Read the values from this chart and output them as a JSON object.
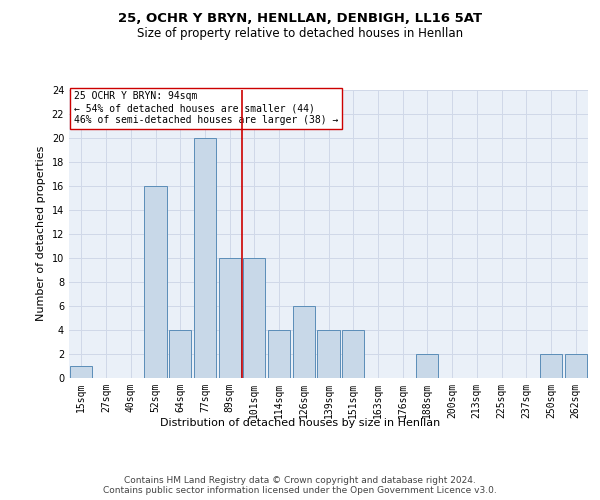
{
  "title1": "25, OCHR Y BRYN, HENLLAN, DENBIGH, LL16 5AT",
  "title2": "Size of property relative to detached houses in Henllan",
  "xlabel": "Distribution of detached houses by size in Henllan",
  "ylabel": "Number of detached properties",
  "categories": [
    "15sqm",
    "27sqm",
    "40sqm",
    "52sqm",
    "64sqm",
    "77sqm",
    "89sqm",
    "101sqm",
    "114sqm",
    "126sqm",
    "139sqm",
    "151sqm",
    "163sqm",
    "176sqm",
    "188sqm",
    "200sqm",
    "213sqm",
    "225sqm",
    "237sqm",
    "250sqm",
    "262sqm"
  ],
  "values": [
    1,
    0,
    0,
    16,
    4,
    20,
    10,
    10,
    4,
    6,
    4,
    4,
    0,
    0,
    2,
    0,
    0,
    0,
    0,
    2,
    2
  ],
  "bar_color": "#c8d8e8",
  "bar_edge_color": "#5b8db8",
  "vline_x_index": 6.5,
  "vline_color": "#cc0000",
  "annotation_text": "25 OCHR Y BRYN: 94sqm\n← 54% of detached houses are smaller (44)\n46% of semi-detached houses are larger (38) →",
  "annotation_box_color": "#ffffff",
  "annotation_box_edge": "#cc0000",
  "ylim": [
    0,
    24
  ],
  "yticks": [
    0,
    2,
    4,
    6,
    8,
    10,
    12,
    14,
    16,
    18,
    20,
    22,
    24
  ],
  "grid_color": "#d0d8e8",
  "background_color": "#eaf0f8",
  "footer_text": "Contains HM Land Registry data © Crown copyright and database right 2024.\nContains public sector information licensed under the Open Government Licence v3.0.",
  "title1_fontsize": 9.5,
  "title2_fontsize": 8.5,
  "xlabel_fontsize": 8,
  "ylabel_fontsize": 8,
  "tick_fontsize": 7,
  "footer_fontsize": 6.5,
  "annotation_fontsize": 7
}
